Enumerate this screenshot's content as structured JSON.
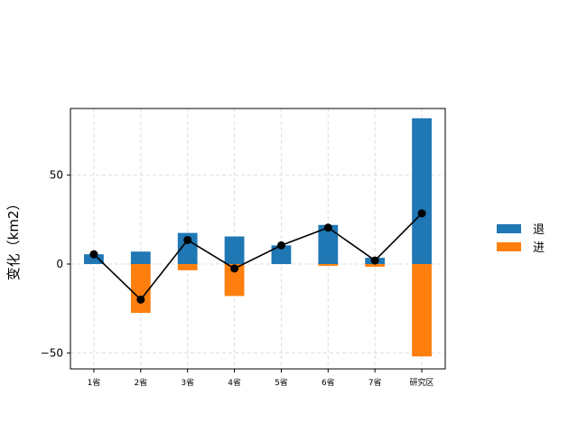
{
  "chart_data": {
    "type": "bar",
    "categories": [
      "1省",
      "2省",
      "3省",
      "4省",
      "5省",
      "6省",
      "7省",
      "研究区"
    ],
    "series": [
      {
        "name": "退",
        "kind": "bar",
        "color": "#1f77b4",
        "values": [
          5.5,
          7,
          17.5,
          15.5,
          10.5,
          22,
          3.5,
          82
        ]
      },
      {
        "name": "进",
        "kind": "bar",
        "color": "#ff7f0e",
        "values": [
          0,
          -27.5,
          -3.5,
          -18,
          0,
          -1,
          -1.5,
          -52
        ]
      },
      {
        "kind": "line",
        "color": "#000000",
        "values": [
          5.5,
          -20,
          13.5,
          -2.5,
          10.5,
          20.5,
          2,
          28.5
        ]
      }
    ],
    "ylabel": "变化（km2）",
    "yticks": [
      -50,
      0,
      50
    ],
    "ylim": [
      -59,
      87.5
    ],
    "grid": true,
    "legend_position": "right"
  }
}
